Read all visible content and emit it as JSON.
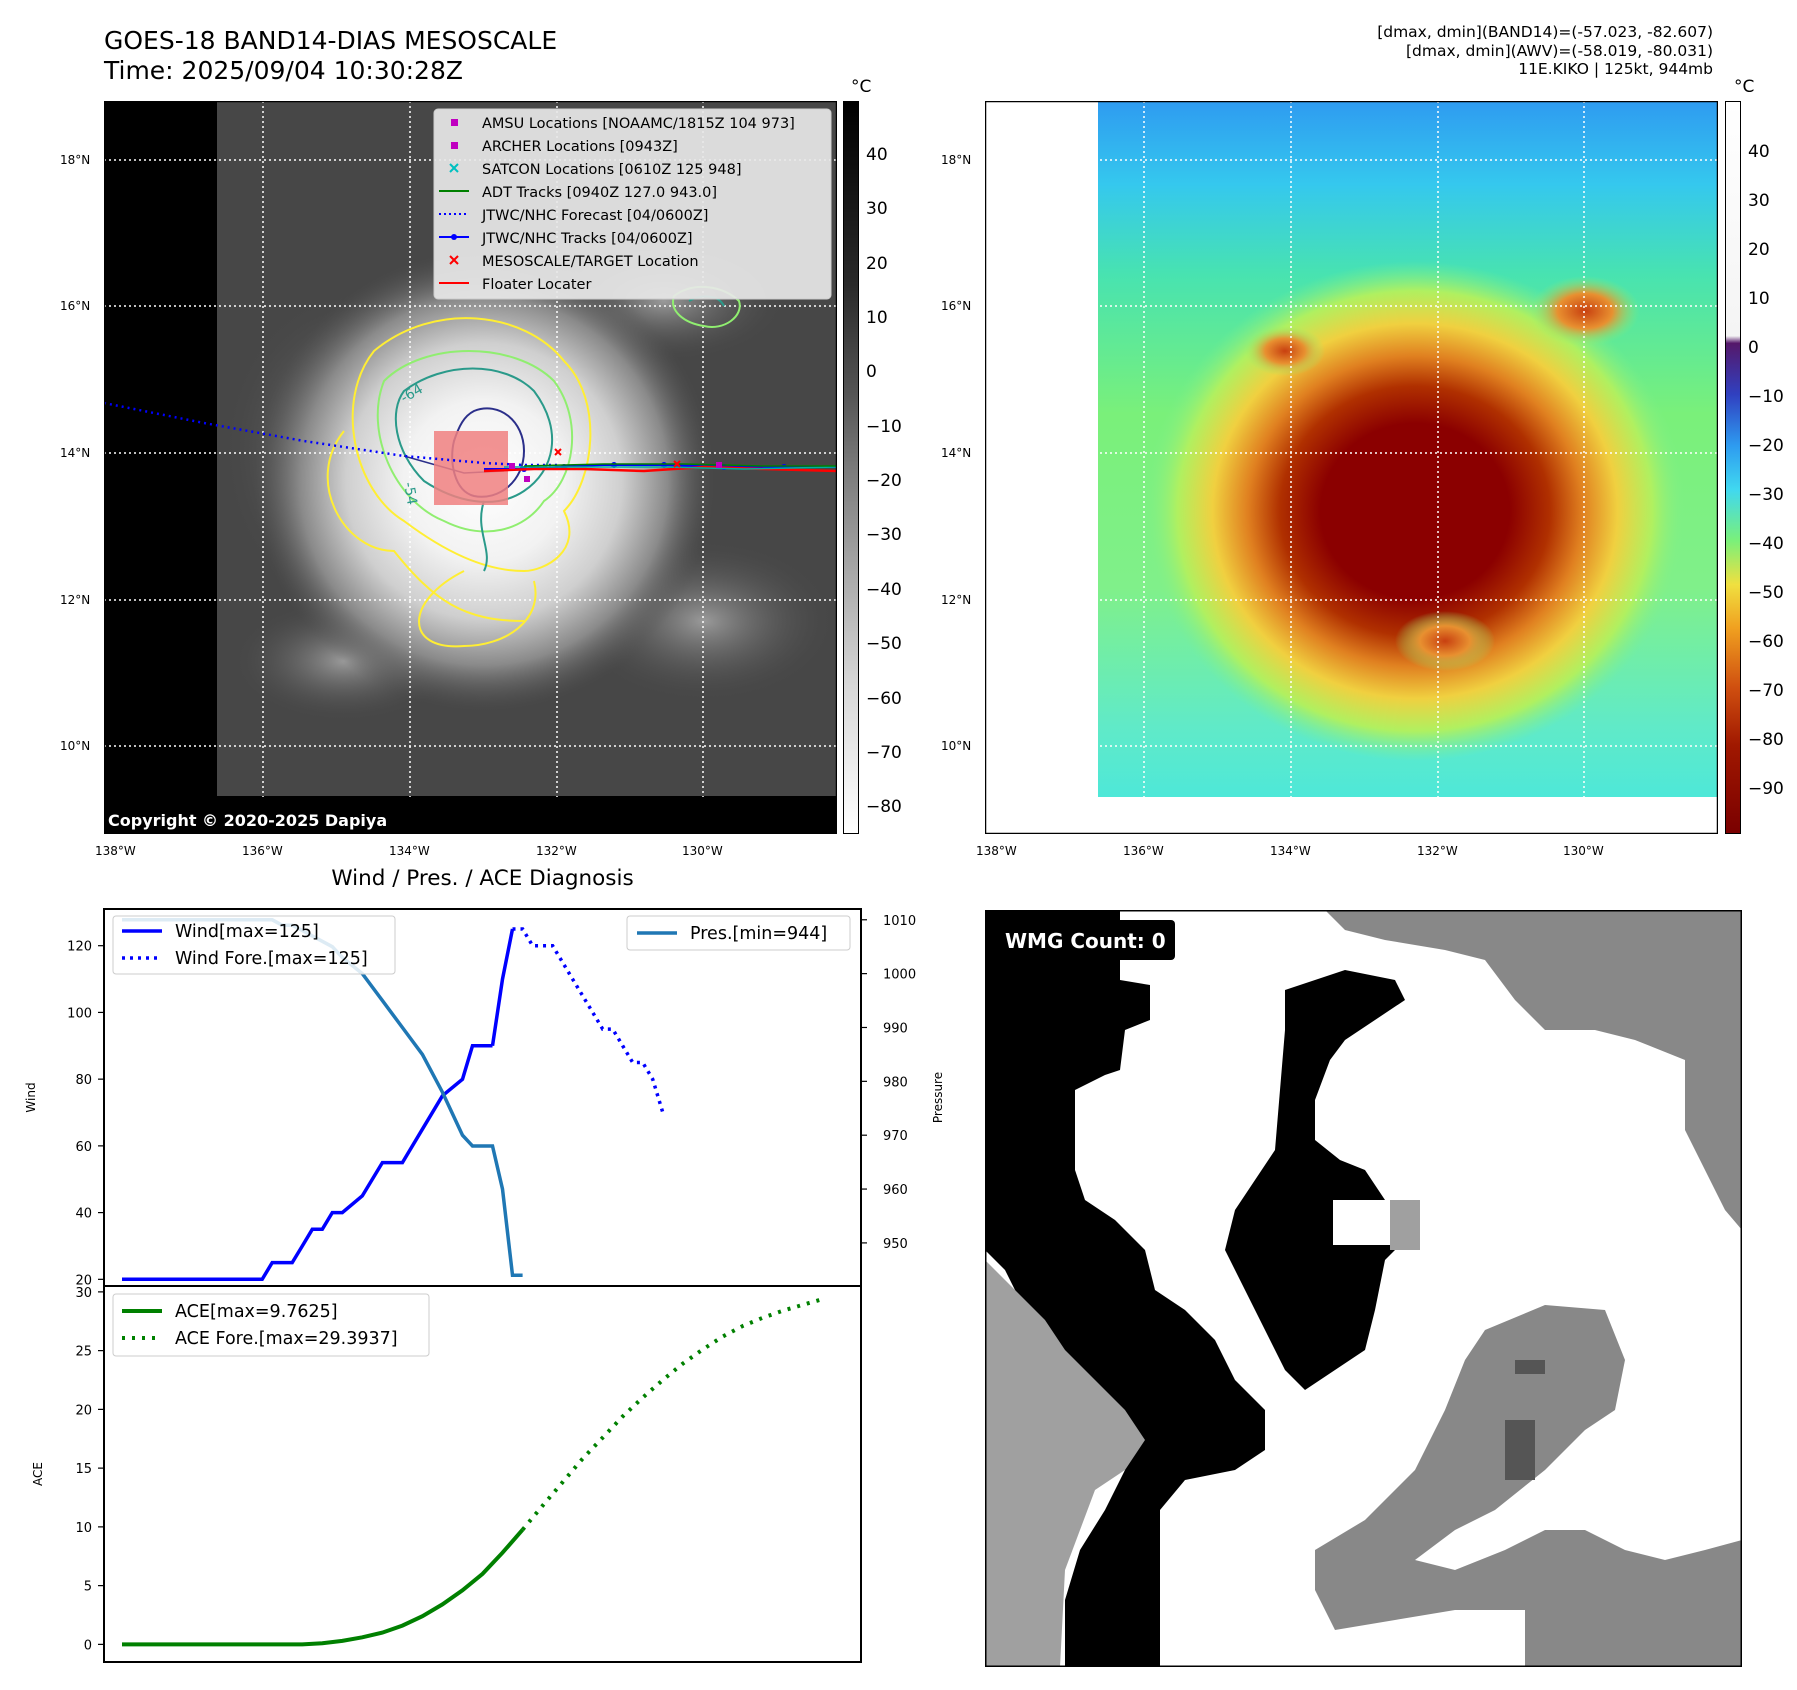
{
  "header": {
    "title_line1": "GOES-18 BAND14-DIAS MESOSCALE",
    "title_line2": "Time: 2025/09/04 10:30:28Z",
    "right_line1": "[dmax, dmin](BAND14)=(-57.023, -82.607)",
    "right_line2": "[dmax, dmin](AWV)=(-58.019, -80.031)",
    "right_line3": "11E.KIKO | 125kt, 944mb"
  },
  "map": {
    "lon_ticks": [
      "138°W",
      "136°W",
      "134°W",
      "132°W",
      "130°W"
    ],
    "lat_ticks": [
      "18°N",
      "16°N",
      "14°N",
      "12°N",
      "10°N"
    ],
    "copyright": "Copyright © 2020-2025 Dapiya",
    "contour_labels": [
      "-64",
      "-54"
    ],
    "legend": [
      {
        "label": "AMSU Locations [NOAAMC/1815Z 104 973]",
        "marker": "square",
        "color": "#c000c0"
      },
      {
        "label": "ARCHER Locations [0943Z]",
        "marker": "square",
        "color": "#c000c0"
      },
      {
        "label": "SATCON Locations [0610Z 125 948]",
        "marker": "x",
        "color": "#00c0c0"
      },
      {
        "label": "ADT Tracks [0940Z 127.0 943.0]",
        "marker": "line",
        "color": "#008000"
      },
      {
        "label": "JTWC/NHC Forecast [04/0600Z]",
        "marker": "dotted",
        "color": "#0000ff"
      },
      {
        "label": "JTWC/NHC Tracks [04/0600Z]",
        "marker": "line-dot",
        "color": "#0000ff"
      },
      {
        "label": "MESOSCALE/TARGET Location",
        "marker": "x",
        "color": "#ff0000"
      },
      {
        "label": "Floater Locater",
        "marker": "line",
        "color": "#ff0000"
      }
    ]
  },
  "colorbar_left": {
    "unit": "°C",
    "ticks": [
      "40",
      "30",
      "20",
      "10",
      "0",
      "−10",
      "−20",
      "−30",
      "−40",
      "−50",
      "−60",
      "−70",
      "−80"
    ]
  },
  "colorbar_right": {
    "unit": "°C",
    "ticks": [
      "40",
      "30",
      "20",
      "10",
      "0",
      "−10",
      "−20",
      "−30",
      "−40",
      "−50",
      "−60",
      "−70",
      "−80",
      "−90"
    ]
  },
  "wmg": {
    "label": "WMG Count: 0"
  },
  "chart_data": [
    {
      "type": "line",
      "title": "Wind / Pres. / ACE Diagnosis",
      "ylabel": "Wind",
      "ylabel_right": "Pressure",
      "ylim": [
        18,
        131
      ],
      "ylim_right": [
        942,
        1012
      ],
      "yticks": [
        20,
        40,
        60,
        80,
        100,
        120
      ],
      "yticks_right": [
        950,
        960,
        970,
        980,
        990,
        1000,
        1010
      ],
      "series": [
        {
          "name": "Wind[max=125]",
          "axis": "left",
          "style": "solid",
          "color": "#0000ff",
          "x": [
            0,
            2,
            4,
            6,
            8,
            10,
            12,
            14,
            15,
            16,
            17,
            18,
            19,
            20,
            21,
            22,
            24,
            26,
            28,
            30,
            32,
            34,
            35,
            36,
            37
          ],
          "y": [
            20,
            20,
            20,
            20,
            20,
            20,
            20,
            20,
            25,
            25,
            25,
            30,
            35,
            35,
            40,
            40,
            45,
            55,
            55,
            65,
            75,
            80,
            90,
            90,
            90
          ]
        },
        {
          "name": "",
          "axis": "left",
          "style": "solid",
          "color": "#0000ff",
          "x": [
            37,
            38,
            39
          ],
          "y": [
            90,
            110,
            125
          ]
        },
        {
          "name": "Wind Fore.[max=125]",
          "axis": "left",
          "style": "dotted",
          "color": "#0000ff",
          "x": [
            39,
            40,
            41,
            42,
            43,
            44,
            45,
            46,
            47,
            48,
            49,
            50,
            51,
            52,
            53,
            54
          ],
          "y": [
            125,
            125,
            120,
            120,
            120,
            115,
            110,
            105,
            100,
            95,
            95,
            90,
            85,
            85,
            80,
            70
          ]
        },
        {
          "name": "Pres.[min=944]",
          "axis": "right",
          "style": "solid",
          "color": "#1f77b4",
          "x": [
            0,
            2,
            4,
            6,
            8,
            10,
            12,
            14,
            15,
            16,
            17,
            18,
            19,
            20,
            21,
            22,
            24,
            26,
            28,
            30,
            32,
            34,
            35,
            36,
            37,
            38,
            39,
            40
          ],
          "y": [
            1010,
            1010,
            1010,
            1010,
            1010,
            1010,
            1010,
            1010,
            1010,
            1009,
            1009,
            1008,
            1007,
            1006,
            1005,
            1003,
            1000,
            995,
            990,
            985,
            978,
            970,
            968,
            968,
            968,
            960,
            944,
            944
          ]
        }
      ]
    },
    {
      "type": "line",
      "ylabel": "ACE",
      "ylim": [
        -1.5,
        30.5
      ],
      "yticks": [
        0,
        5,
        10,
        15,
        20,
        25,
        30
      ],
      "series": [
        {
          "name": "ACE[max=9.7625]",
          "style": "solid",
          "color": "#008000",
          "x": [
            0,
            4,
            8,
            12,
            16,
            18,
            20,
            22,
            24,
            26,
            28,
            30,
            32,
            34,
            36,
            38,
            40
          ],
          "y": [
            0,
            0,
            0,
            0,
            0,
            0,
            0.1,
            0.3,
            0.6,
            1.0,
            1.6,
            2.4,
            3.4,
            4.6,
            6.0,
            7.8,
            9.7625
          ]
        },
        {
          "name": "ACE Fore.[max=29.3937]",
          "style": "dotted",
          "color": "#008000",
          "x": [
            40,
            42,
            44,
            46,
            48,
            50,
            52,
            54,
            56,
            58,
            60,
            62,
            64,
            66,
            68,
            70
          ],
          "y": [
            9.7625,
            11.8,
            13.8,
            15.8,
            17.6,
            19.4,
            21.0,
            22.5,
            23.9,
            25.1,
            26.2,
            27.1,
            27.8,
            28.4,
            28.9,
            29.3937
          ]
        }
      ]
    }
  ]
}
